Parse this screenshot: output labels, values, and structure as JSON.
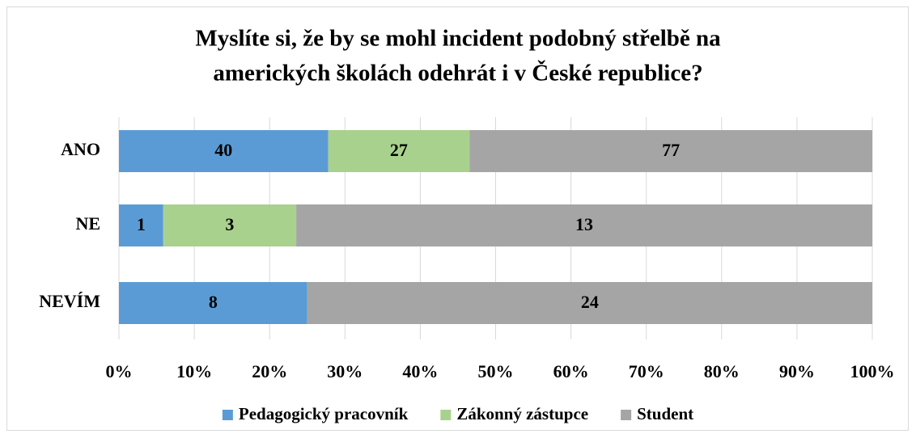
{
  "chart_data": {
    "type": "bar",
    "orientation": "horizontal",
    "stacked": "percent",
    "title": [
      "Myslíte si, že by se mohl incident podobný střelbě na",
      "amerických školách odehrát i v České republice?"
    ],
    "categories": [
      "ANO",
      "NE",
      "NEVÍM"
    ],
    "series": [
      {
        "name": "Pedagogický pracovník",
        "color": "#5b9bd5",
        "values": [
          40,
          1,
          8
        ]
      },
      {
        "name": "Zákonný zástupce",
        "color": "#a9d18e",
        "values": [
          27,
          3,
          null
        ]
      },
      {
        "name": "Student",
        "color": "#a5a5a5",
        "values": [
          77,
          13,
          24
        ]
      }
    ],
    "xlim": [
      0,
      100
    ],
    "xticks": [
      {
        "value": 0,
        "label": "0%"
      },
      {
        "value": 10,
        "label": "10%"
      },
      {
        "value": 20,
        "label": "20%"
      },
      {
        "value": 30,
        "label": "30%"
      },
      {
        "value": 40,
        "label": "40%"
      },
      {
        "value": 50,
        "label": "50%"
      },
      {
        "value": 60,
        "label": "60%"
      },
      {
        "value": 70,
        "label": "70%"
      },
      {
        "value": 80,
        "label": "80%"
      },
      {
        "value": 90,
        "label": "90%"
      },
      {
        "value": 100,
        "label": "100%"
      }
    ],
    "grid": true,
    "legend": "bottom"
  }
}
